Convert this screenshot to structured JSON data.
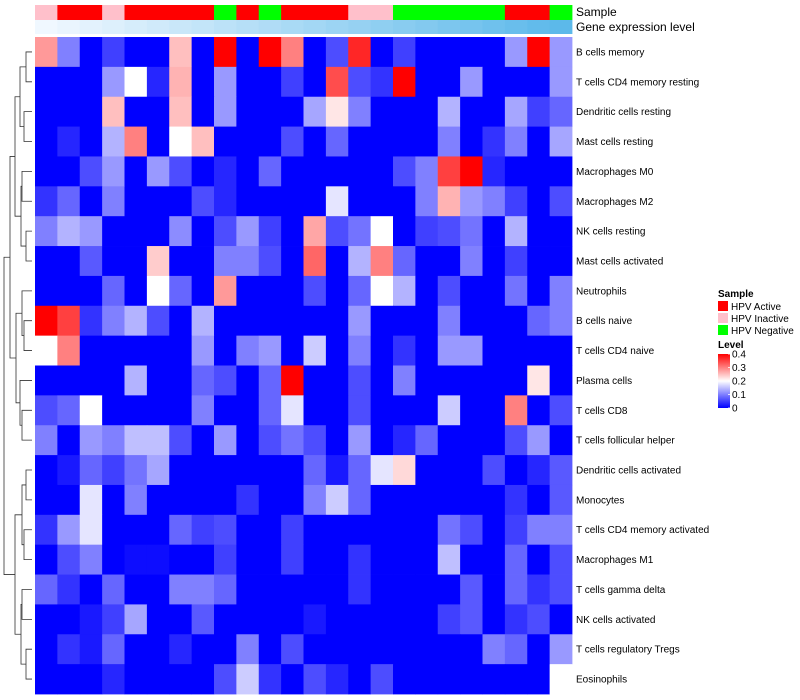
{
  "chart_data": {
    "type": "heatmap",
    "title": "",
    "annotation_tracks": [
      "Sample",
      "Gene expression level"
    ],
    "rows": [
      "B cells memory",
      "T cells CD4 memory resting",
      "Dendritic cells resting",
      "Mast cells resting",
      "Macrophages M0",
      "Macrophages M2",
      "NK cells resting",
      "Mast cells activated",
      "Neutrophils",
      "B cells naive",
      "T cells CD4 naive",
      "Plasma cells",
      "T cells CD8",
      "T cells follicular helper",
      "Dendritic cells activated",
      "Monocytes",
      "T cells CD4 memory activated",
      "Macrophages M1",
      "T cells gamma delta",
      "NK cells activated",
      "T cells regulatory  Tregs",
      "Eosinophils"
    ],
    "sample_groups": [
      "Inactive",
      "Active",
      "Active",
      "Inactive",
      "Active",
      "Active",
      "Active",
      "Active",
      "Negative",
      "Active",
      "Negative",
      "Active",
      "Active",
      "Active",
      "Inactive",
      "Inactive",
      "Negative",
      "Negative",
      "Negative",
      "Negative",
      "Negative",
      "Active",
      "Active",
      "Negative"
    ],
    "expression_gradient": [
      0.0,
      0.04,
      0.08,
      0.12,
      0.16,
      0.2,
      0.24,
      0.28,
      0.32,
      0.36,
      0.4,
      0.44,
      0.48,
      0.52,
      0.56,
      0.6,
      0.64,
      0.68,
      0.72,
      0.76,
      0.8,
      0.84,
      0.88,
      0.92
    ],
    "values": [
      [
        0.28,
        0.1,
        0.0,
        0.05,
        0.0,
        0.0,
        0.25,
        0.0,
        0.4,
        0.0,
        0.4,
        0.3,
        0.0,
        0.06,
        0.37,
        0.0,
        0.05,
        0.0,
        0.0,
        0.0,
        0.0,
        0.12,
        0.4,
        0.12
      ],
      [
        0.0,
        0.0,
        0.0,
        0.12,
        0.2,
        0.03,
        0.26,
        0.0,
        0.12,
        0.0,
        0.0,
        0.05,
        0.0,
        0.34,
        0.06,
        0.04,
        0.4,
        0.0,
        0.0,
        0.12,
        0.0,
        0.0,
        0.0,
        0.12
      ],
      [
        0.0,
        0.0,
        0.0,
        0.25,
        0.0,
        0.0,
        0.25,
        0.0,
        0.12,
        0.0,
        0.0,
        0.0,
        0.13,
        0.22,
        0.1,
        0.0,
        0.0,
        0.0,
        0.14,
        0.0,
        0.0,
        0.13,
        0.05,
        0.08
      ],
      [
        0.0,
        0.03,
        0.0,
        0.14,
        0.3,
        0.0,
        0.2,
        0.25,
        0.0,
        0.0,
        0.0,
        0.06,
        0.0,
        0.08,
        0.0,
        0.0,
        0.0,
        0.0,
        0.1,
        0.0,
        0.04,
        0.1,
        0.0,
        0.13
      ],
      [
        0.0,
        0.0,
        0.06,
        0.12,
        0.0,
        0.12,
        0.06,
        0.0,
        0.03,
        0.0,
        0.08,
        0.0,
        0.0,
        0.0,
        0.0,
        0.0,
        0.06,
        0.1,
        0.35,
        0.4,
        0.03,
        0.0,
        0.0,
        0.0
      ],
      [
        0.04,
        0.08,
        0.0,
        0.1,
        0.0,
        0.0,
        0.0,
        0.06,
        0.03,
        0.0,
        0.0,
        0.0,
        0.0,
        0.18,
        0.0,
        0.0,
        0.0,
        0.1,
        0.26,
        0.12,
        0.1,
        0.05,
        0.0,
        0.06
      ],
      [
        0.1,
        0.14,
        0.12,
        0.0,
        0.0,
        0.0,
        0.11,
        0.0,
        0.06,
        0.12,
        0.05,
        0.0,
        0.27,
        0.06,
        0.09,
        0.2,
        0.0,
        0.05,
        0.06,
        0.09,
        0.0,
        0.14,
        0.0,
        0.0
      ],
      [
        0.0,
        0.0,
        0.07,
        0.0,
        0.0,
        0.24,
        0.0,
        0.0,
        0.1,
        0.1,
        0.06,
        0.0,
        0.32,
        0.0,
        0.14,
        0.3,
        0.08,
        0.0,
        0.0,
        0.1,
        0.0,
        0.05,
        0.0,
        0.0
      ],
      [
        0.0,
        0.0,
        0.0,
        0.08,
        0.0,
        0.2,
        0.08,
        0.0,
        0.28,
        0.0,
        0.0,
        0.0,
        0.06,
        0.0,
        0.08,
        0.2,
        0.14,
        0.0,
        0.06,
        0.0,
        0.0,
        0.09,
        0.0,
        0.1
      ],
      [
        0.4,
        0.35,
        0.04,
        0.1,
        0.14,
        0.06,
        0.0,
        0.14,
        0.0,
        0.0,
        0.0,
        0.0,
        0.0,
        0.0,
        0.12,
        0.0,
        0.0,
        0.0,
        0.1,
        0.0,
        0.0,
        0.0,
        0.08,
        0.1
      ],
      [
        0.2,
        0.3,
        0.0,
        0.0,
        0.0,
        0.0,
        0.0,
        0.12,
        0.0,
        0.1,
        0.12,
        0.0,
        0.16,
        0.0,
        0.1,
        0.0,
        0.04,
        0.0,
        0.12,
        0.12,
        0.0,
        0.0,
        0.0,
        0.0
      ],
      [
        0.0,
        0.0,
        0.0,
        0.0,
        0.14,
        0.0,
        0.0,
        0.08,
        0.06,
        0.0,
        0.08,
        0.4,
        0.0,
        0.0,
        0.06,
        0.0,
        0.1,
        0.0,
        0.0,
        0.0,
        0.0,
        0.0,
        0.22,
        0.0
      ],
      [
        0.06,
        0.08,
        0.2,
        0.0,
        0.0,
        0.0,
        0.0,
        0.1,
        0.0,
        0.0,
        0.08,
        0.18,
        0.0,
        0.0,
        0.06,
        0.0,
        0.0,
        0.0,
        0.16,
        0.0,
        0.0,
        0.3,
        0.0,
        0.06
      ],
      [
        0.1,
        0.0,
        0.12,
        0.1,
        0.15,
        0.15,
        0.06,
        0.0,
        0.12,
        0.0,
        0.06,
        0.09,
        0.06,
        0.0,
        0.12,
        0.0,
        0.03,
        0.08,
        0.0,
        0.0,
        0.0,
        0.06,
        0.12,
        0.0
      ],
      [
        0.0,
        0.02,
        0.08,
        0.05,
        0.09,
        0.13,
        0.0,
        0.0,
        0.0,
        0.0,
        0.0,
        0.0,
        0.08,
        0.02,
        0.08,
        0.18,
        0.23,
        0.0,
        0.0,
        0.0,
        0.06,
        0.0,
        0.03,
        0.07
      ],
      [
        0.0,
        0.0,
        0.18,
        0.0,
        0.1,
        0.0,
        0.0,
        0.0,
        0.0,
        0.04,
        0.0,
        0.0,
        0.1,
        0.16,
        0.08,
        0.0,
        0.0,
        0.0,
        0.0,
        0.0,
        0.0,
        0.04,
        0.0,
        0.07
      ],
      [
        0.04,
        0.12,
        0.18,
        0.0,
        0.0,
        0.0,
        0.08,
        0.05,
        0.06,
        0.0,
        0.0,
        0.05,
        0.0,
        0.0,
        0.0,
        0.0,
        0.0,
        0.0,
        0.09,
        0.06,
        0.0,
        0.05,
        0.1,
        0.1
      ],
      [
        0.0,
        0.06,
        0.1,
        0.0,
        0.01,
        0.01,
        0.0,
        0.0,
        0.05,
        0.0,
        0.0,
        0.05,
        0.0,
        0.0,
        0.04,
        0.0,
        0.0,
        0.0,
        0.15,
        0.0,
        0.0,
        0.08,
        0.0,
        0.06
      ],
      [
        0.08,
        0.04,
        0.0,
        0.08,
        0.0,
        0.0,
        0.1,
        0.1,
        0.08,
        0.0,
        0.0,
        0.0,
        0.0,
        0.0,
        0.04,
        0.0,
        0.0,
        0.0,
        0.0,
        0.07,
        0.0,
        0.08,
        0.04,
        0.06
      ],
      [
        0.0,
        0.0,
        0.02,
        0.05,
        0.13,
        0.0,
        0.0,
        0.07,
        0.0,
        0.0,
        0.0,
        0.0,
        0.02,
        0.0,
        0.0,
        0.0,
        0.0,
        0.0,
        0.05,
        0.07,
        0.0,
        0.04,
        0.06,
        0.0
      ],
      [
        0.0,
        0.04,
        0.02,
        0.08,
        0.0,
        0.0,
        0.03,
        0.0,
        0.0,
        0.1,
        0.0,
        0.06,
        0.0,
        0.0,
        0.0,
        0.0,
        0.0,
        0.0,
        0.0,
        0.0,
        0.1,
        0.08,
        0.0,
        0.12
      ],
      [
        0.0,
        0.0,
        0.0,
        0.03,
        0.0,
        0.0,
        0.0,
        0.0,
        0.06,
        0.16,
        0.04,
        0.0,
        0.06,
        0.03,
        0.0,
        0.06,
        0.0,
        0.0,
        0.0,
        0.0,
        0.0,
        0.0,
        0.0,
        0.2
      ]
    ],
    "legend": {
      "sample_title": "Sample",
      "sample_items": [
        {
          "key": "Active",
          "label": "HPV Active",
          "color": "#ff0000"
        },
        {
          "key": "Inactive",
          "label": "HPV Inactive",
          "color": "#ffc0cb"
        },
        {
          "key": "Negative",
          "label": "HPV Negative",
          "color": "#00ff00"
        }
      ],
      "level_title": "Level",
      "level_ticks": [
        "0.4",
        "0.3",
        "0.2",
        "0.1",
        "0"
      ],
      "level_range": [
        0,
        0.4
      ]
    },
    "colors": {
      "low": "#0000ff",
      "mid": "#ffffff",
      "high": "#ff0000",
      "expr_low": "#f0f8ff",
      "expr_high": "#4fb3e8"
    }
  }
}
